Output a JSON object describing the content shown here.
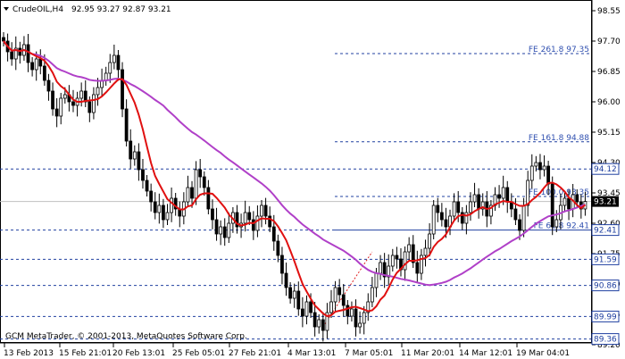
{
  "header": {
    "symbol": "CrudeOIL,H4",
    "ohlc": "92.95 93.27 92.87 93.21"
  },
  "footer": {
    "copyright": "GCM MetaTrader, © 2001-2013, MetaQuotes Software Corp."
  },
  "colors": {
    "background": "#ffffff",
    "candles": "#000000",
    "ma_fast": "#e01010",
    "ma_slow": "#b040c8",
    "levels": "#2040a0",
    "trend": "#e02020",
    "current_tag": "#000000"
  },
  "chart_data": {
    "type": "candlestick",
    "symbol": "CrudeOIL",
    "timeframe": "H4",
    "ylim": [
      89.25,
      98.85
    ],
    "y_ticks": [
      "98.55",
      "97.70",
      "96.85",
      "96.00",
      "95.15",
      "94.30",
      "93.45",
      "92.60",
      "91.75",
      "90.90",
      "90.05",
      "89.20"
    ],
    "x_ticks": [
      "13 Feb 2013",
      "15 Feb 21:01",
      "20 Feb 13:01",
      "25 Feb 05:01",
      "27 Feb 21:01",
      "4 Mar 13:01",
      "7 Mar 05:01",
      "11 Mar 20:01",
      "14 Mar 12:01",
      "19 Mar 04:01"
    ],
    "current_price": "93.21",
    "price_levels": [
      {
        "label": "94.12",
        "value": 94.12
      },
      {
        "label": "92.41",
        "value": 92.41
      },
      {
        "label": "91.59",
        "value": 91.59
      },
      {
        "label": "90.86",
        "value": 90.86
      },
      {
        "label": "89.99",
        "value": 89.99
      },
      {
        "label": "89.36",
        "value": 89.36
      }
    ],
    "fibo_levels": [
      {
        "label": "FE 261.8 97.35",
        "value": 97.35
      },
      {
        "label": "FE 161.8 94.88",
        "value": 94.88
      },
      {
        "label": "FE 100.0 93.35",
        "value": 93.35
      },
      {
        "label": "FE 61.8 92.41",
        "value": 92.41
      }
    ],
    "closes": [
      97.7,
      97.4,
      97.2,
      97.5,
      97.3,
      97.6,
      97.1,
      96.9,
      97.2,
      97.0,
      96.6,
      96.3,
      95.8,
      95.6,
      96.1,
      96.2,
      96.0,
      95.9,
      96.1,
      96.3,
      96.0,
      95.7,
      96.2,
      96.4,
      96.6,
      96.8,
      97.1,
      97.3,
      96.9,
      95.8,
      94.9,
      94.4,
      94.6,
      94.1,
      93.8,
      93.5,
      93.2,
      92.9,
      93.1,
      92.7,
      92.9,
      93.3,
      93.0,
      92.8,
      93.2,
      93.6,
      93.3,
      94.1,
      93.9,
      93.6,
      93.0,
      92.7,
      92.3,
      92.5,
      92.2,
      92.6,
      92.9,
      92.5,
      92.6,
      92.9,
      92.7,
      92.4,
      92.8,
      93.1,
      92.8,
      92.5,
      92.1,
      91.7,
      91.2,
      90.8,
      90.5,
      90.7,
      90.2,
      90.0,
      90.4,
      90.1,
      89.7,
      89.9,
      89.6,
      90.1,
      90.4,
      90.8,
      90.6,
      90.3,
      90.0,
      90.2,
      89.7,
      89.8,
      90.1,
      90.4,
      90.8,
      91.2,
      91.5,
      91.1,
      91.4,
      91.7,
      91.6,
      91.3,
      91.8,
      92.0,
      91.5,
      91.2,
      91.7,
      91.9,
      92.3,
      93.1,
      92.9,
      92.7,
      92.5,
      92.8,
      93.2,
      92.9,
      92.6,
      92.9,
      93.2,
      93.4,
      93.0,
      93.2,
      92.8,
      93.1,
      93.4,
      93.3,
      93.6,
      93.2,
      93.0,
      92.7,
      92.4,
      93.1,
      93.8,
      94.2,
      94.3,
      94.1,
      94.2,
      93.7,
      92.5,
      92.7,
      93.1,
      93.3,
      93.0,
      93.4,
      93.2,
      93.0,
      93.21
    ],
    "trendline": {
      "from": [
        89.7,
        93.4
      ],
      "note": "red dashed"
    }
  }
}
